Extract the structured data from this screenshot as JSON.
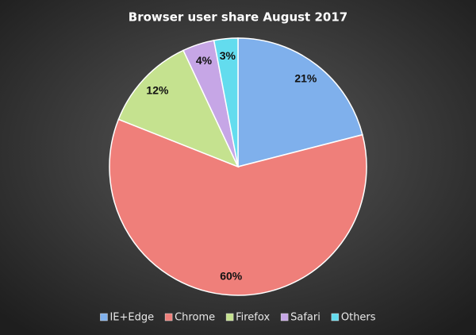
{
  "chart_data": {
    "type": "pie",
    "title": "Browser user share August 2017",
    "categories": [
      "IE+Edge",
      "Chrome",
      "Firefox",
      "Safari",
      "Others"
    ],
    "values": [
      21,
      60,
      12,
      4,
      3
    ],
    "value_labels": [
      "21%",
      "60%",
      "12%",
      "4%",
      "3%"
    ],
    "colors": [
      "#7fb0ec",
      "#ef7f7a",
      "#c5e28f",
      "#c6a6e6",
      "#63dcee"
    ],
    "legend": "bottom"
  }
}
